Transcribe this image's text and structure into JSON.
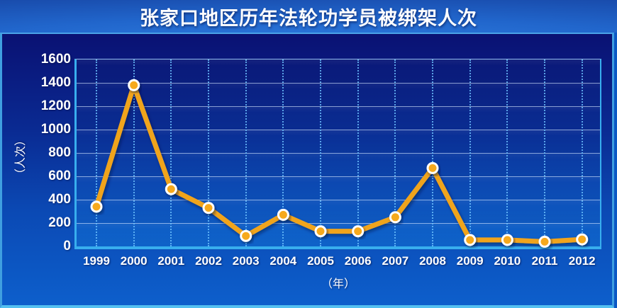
{
  "title": "张家口地区历年法轮功学员被绑架人次",
  "y_axis": {
    "label": "（人次）",
    "ticks": [
      "1600",
      "1400",
      "1200",
      "1000",
      "800",
      "600",
      "400",
      "200",
      "0"
    ]
  },
  "x_axis": {
    "label": "（年）",
    "ticks": [
      "1999",
      "2000",
      "2001",
      "2002",
      "2003",
      "2004",
      "2005",
      "2006",
      "2007",
      "2008",
      "2009",
      "2010",
      "2011",
      "2012"
    ]
  },
  "chart_data": {
    "type": "line",
    "title": "张家口地区历年法轮功学员被绑架人次",
    "categories": [
      "1999",
      "2000",
      "2001",
      "2002",
      "2003",
      "2004",
      "2005",
      "2006",
      "2007",
      "2008",
      "2009",
      "2010",
      "2011",
      "2012"
    ],
    "values": [
      340,
      1380,
      490,
      330,
      90,
      270,
      130,
      130,
      250,
      670,
      55,
      55,
      40,
      60
    ],
    "xlabel": "（年）",
    "ylabel": "（人次）",
    "ylim": [
      0,
      1600
    ],
    "ytick_step": 200,
    "grid": true,
    "legend": false,
    "line_color": "#f0a41c",
    "marker_fill": "#f6a91e",
    "marker_ring": "#ffffff"
  },
  "colors": {
    "page_background": "#0b58c4",
    "panel_top": "#0a1173",
    "panel_bottom": "#0d5fcc",
    "axis": "#38aeee",
    "gridline": "#d7e8ff",
    "text": "#ffffff",
    "series": "#f0a41c"
  }
}
